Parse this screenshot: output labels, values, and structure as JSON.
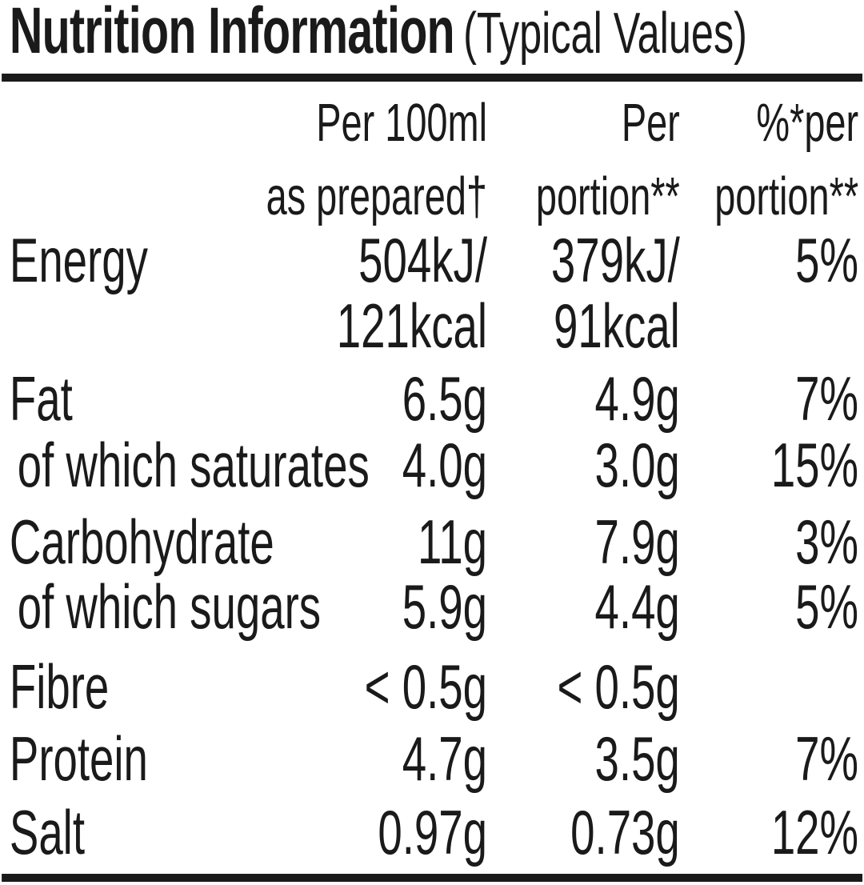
{
  "title": {
    "main": "Nutrition Information",
    "suffix": "(Typical Values)"
  },
  "header": {
    "per_100ml": "Per 100ml\nas prepared†",
    "per_portion": "Per\nportion**",
    "percent_per_portion": "%*per\nportion**"
  },
  "rows": [
    {
      "label": "Energy",
      "sub": false,
      "per_100ml": "504kJ/\n121kcal",
      "per_portion": "379kJ/\n91kcal",
      "percent": "5%"
    },
    {
      "label": "Fat",
      "sub": false,
      "per_100ml": "6.5g",
      "per_portion": "4.9g",
      "percent": "7%"
    },
    {
      "label": "of which saturates",
      "sub": true,
      "per_100ml": "4.0g",
      "per_portion": "3.0g",
      "percent": "15%"
    },
    {
      "label": "Carbohydrate",
      "sub": false,
      "per_100ml": "11g",
      "per_portion": "7.9g",
      "percent": "3%"
    },
    {
      "label": "of which sugars",
      "sub": true,
      "per_100ml": "5.9g",
      "per_portion": "4.4g",
      "percent": "5%"
    },
    {
      "label": "Fibre",
      "sub": false,
      "per_100ml": "< 0.5g",
      "per_portion": "< 0.5g",
      "percent": ""
    },
    {
      "label": "Protein",
      "sub": false,
      "per_100ml": "4.7g",
      "per_portion": "3.5g",
      "percent": "7%"
    },
    {
      "label": "Salt",
      "sub": false,
      "per_100ml": "0.97g",
      "per_portion": "0.73g",
      "percent": "12%"
    }
  ],
  "colors": {
    "text": "#1a1a1a",
    "background": "#ffffff"
  }
}
